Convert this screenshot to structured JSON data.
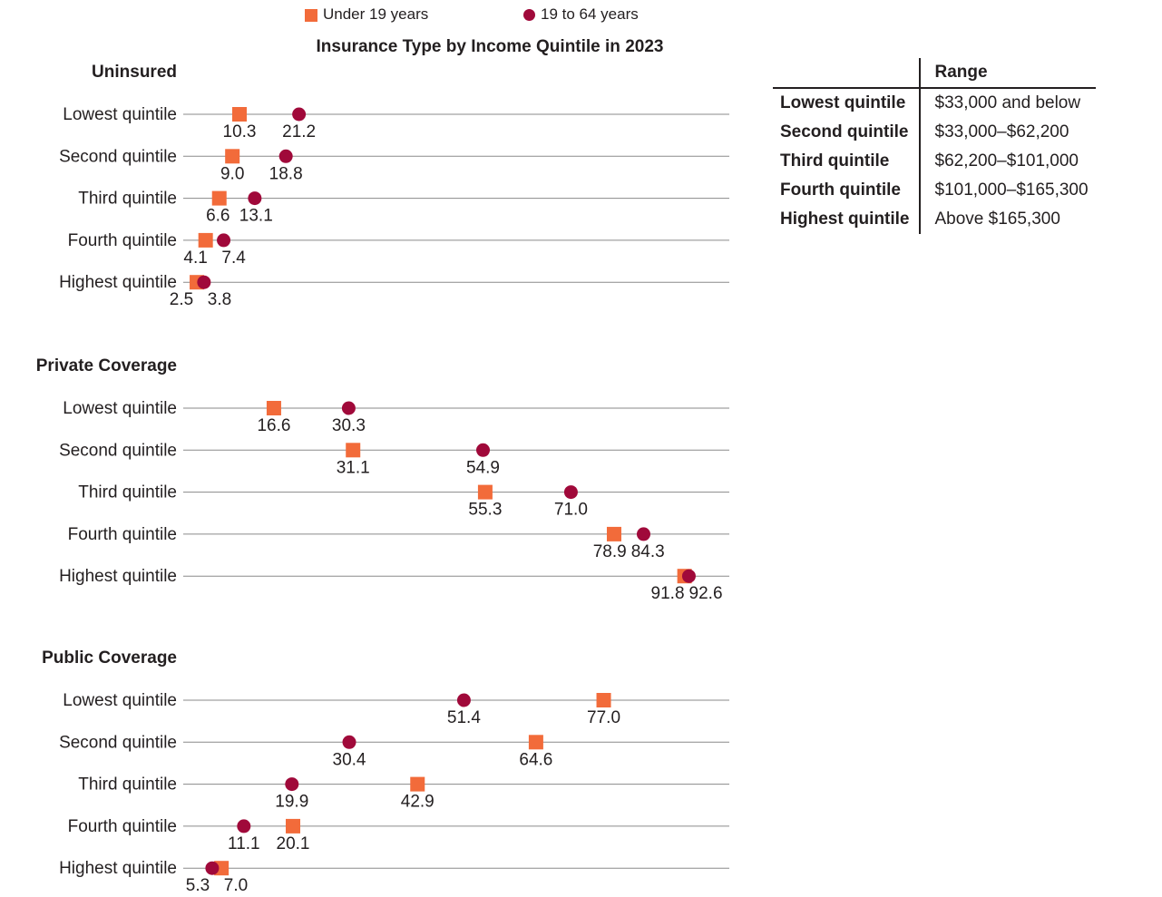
{
  "legend": [
    {
      "label": "Under 19 years",
      "color": "#f26b3a",
      "marker": "square"
    },
    {
      "label": "19 to 64 years",
      "color": "#a0093a",
      "marker": "circle"
    }
  ],
  "chart_data": [
    {
      "type": "scatter",
      "title": "Uninsured",
      "categories": [
        "Lowest quintile",
        "Second quintile",
        "Third quintile",
        "Fourth quintile",
        "Highest quintile"
      ],
      "series": [
        {
          "name": "Under 19 years",
          "values": [
            10.3,
            9.0,
            6.6,
            4.1,
            2.5
          ]
        },
        {
          "name": "19 to 64 years",
          "values": [
            21.2,
            18.8,
            13.1,
            7.4,
            3.8
          ]
        }
      ],
      "xlim": [
        0,
        100
      ],
      "grid": true
    },
    {
      "type": "scatter",
      "title": "Private Coverage",
      "categories": [
        "Lowest quintile",
        "Second quintile",
        "Third quintile",
        "Fourth quintile",
        "Highest quintile"
      ],
      "series": [
        {
          "name": "Under 19 years",
          "values": [
            16.6,
            31.1,
            55.3,
            78.9,
            91.8
          ]
        },
        {
          "name": "19 to 64 years",
          "values": [
            30.3,
            54.9,
            71.0,
            84.3,
            92.6
          ]
        }
      ],
      "xlim": [
        0,
        100
      ],
      "grid": true
    },
    {
      "type": "scatter",
      "title": "Public Coverage",
      "categories": [
        "Lowest quintile",
        "Second quintile",
        "Third quintile",
        "Fourth quintile",
        "Highest quintile"
      ],
      "series": [
        {
          "name": "Under 19 years",
          "values": [
            77.0,
            64.6,
            42.9,
            20.1,
            7.0
          ]
        },
        {
          "name": "19 to 64 years",
          "values": [
            51.4,
            30.4,
            19.9,
            11.1,
            5.3
          ]
        }
      ],
      "xlim": [
        0,
        100
      ],
      "grid": true
    }
  ],
  "main_title": "Insurance Type by Income Quintile in 2023",
  "range_table": {
    "header": "Range",
    "rows": [
      {
        "quintile": "Lowest quintile",
        "range": "$33,000 and below"
      },
      {
        "quintile": "Second quintile",
        "range": "$33,000–$62,200"
      },
      {
        "quintile": "Third quintile",
        "range": "$62,200–$101,000"
      },
      {
        "quintile": "Fourth quintile",
        "range": "$101,000–$165,300"
      },
      {
        "quintile": "Highest quintile",
        "range": "Above $165,300"
      }
    ]
  }
}
